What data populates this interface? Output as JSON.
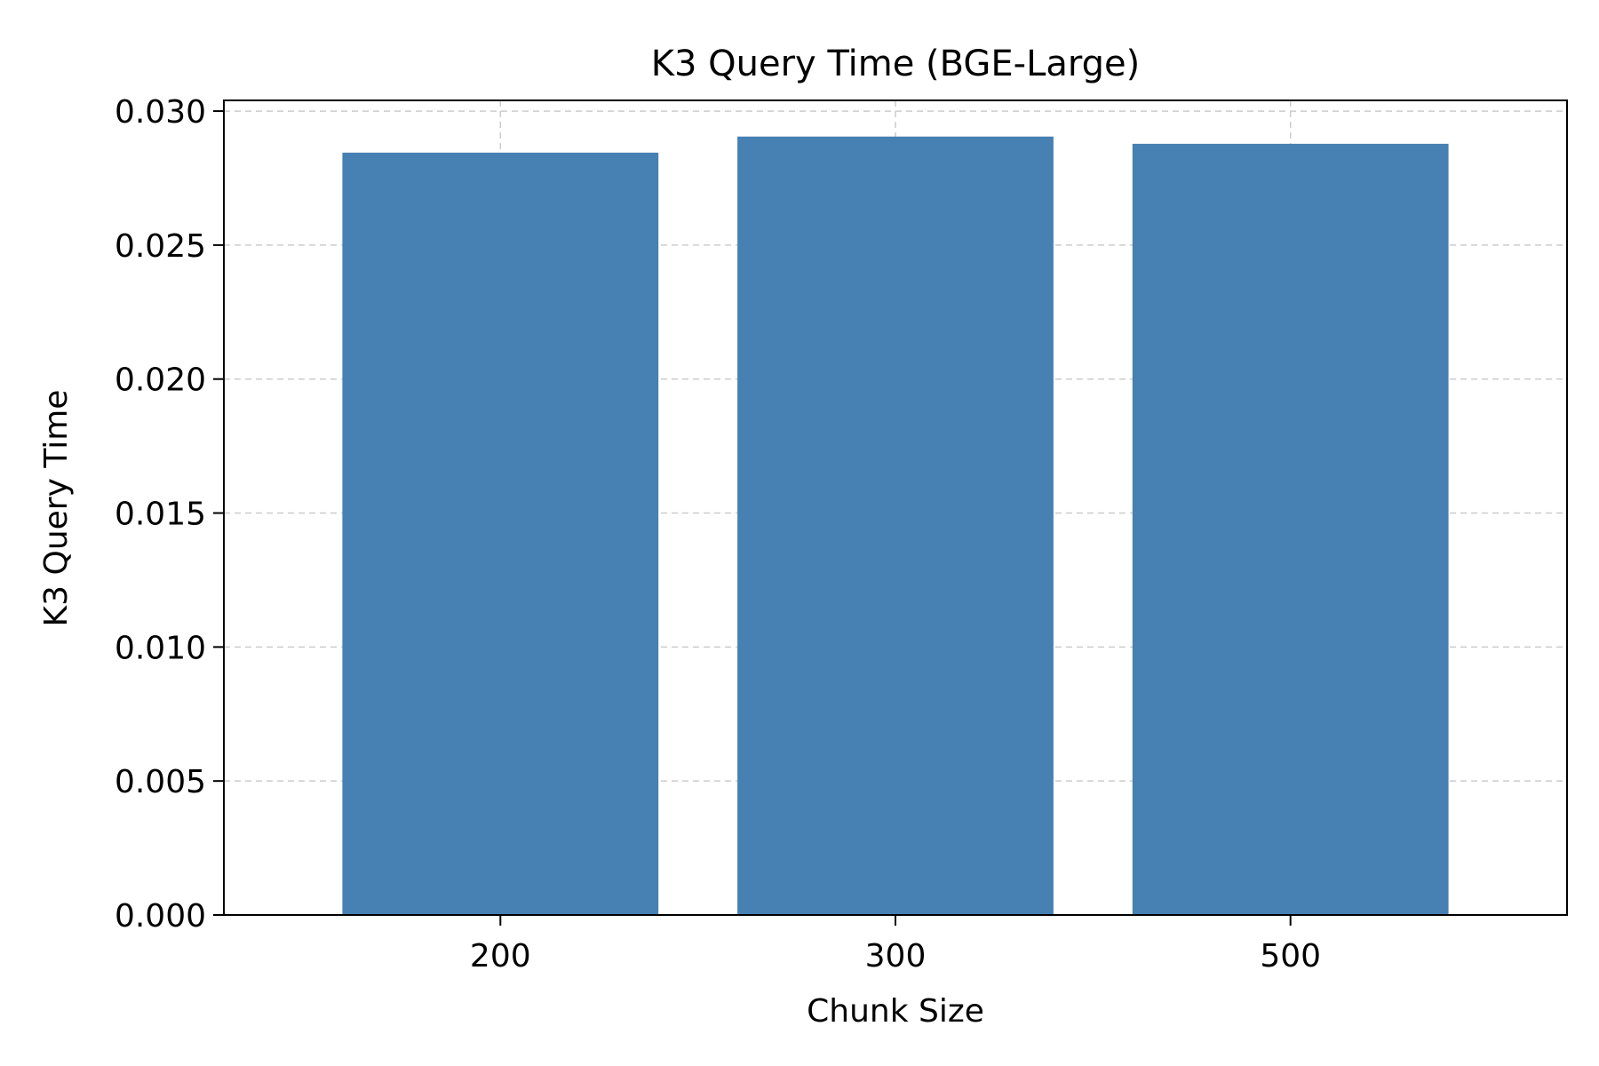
{
  "chart_data": {
    "type": "bar",
    "title": "K3 Query Time (BGE-Large)",
    "xlabel": "Chunk Size",
    "ylabel": "K3 Query Time",
    "categories": [
      "200",
      "300",
      "500"
    ],
    "values": [
      0.02845,
      0.02905,
      0.02878
    ],
    "ylim": [
      0,
      0.0304
    ],
    "yticks": [
      "0.000",
      "0.005",
      "0.010",
      "0.015",
      "0.020",
      "0.025",
      "0.030"
    ],
    "grid": true,
    "legend": "none",
    "bar_color": "#4780b2"
  }
}
